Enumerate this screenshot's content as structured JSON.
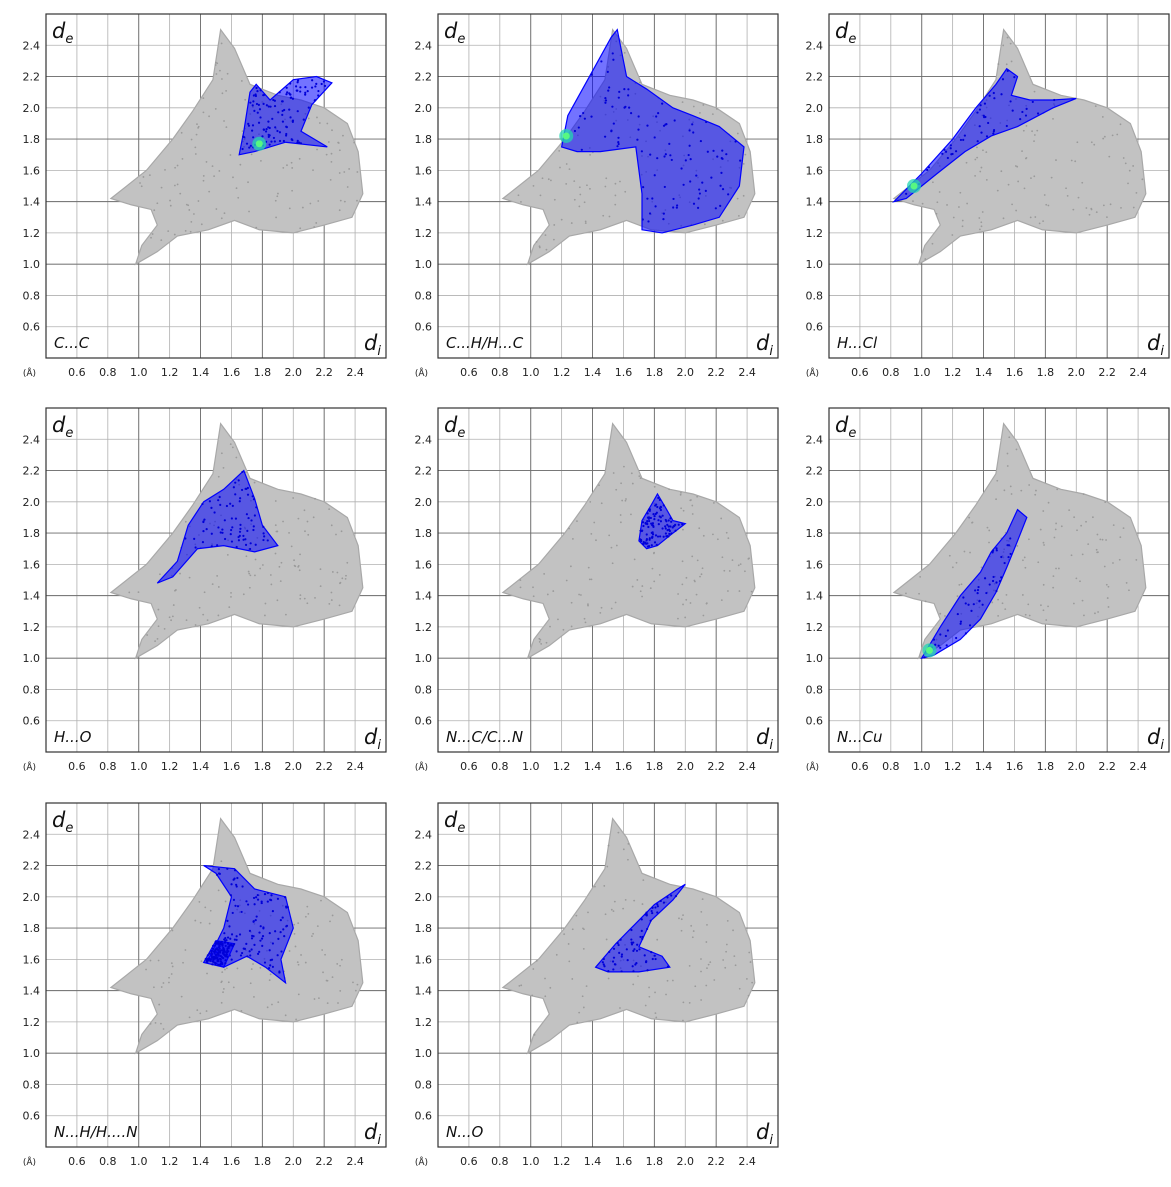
{
  "chart_data": [
    {
      "type": "scatter",
      "title": "",
      "contact_label": "C...C",
      "xlabel": "d",
      "xlabel_sub": "i",
      "ylabel": "d",
      "ylabel_sub": "e",
      "unit": "(Å)",
      "xlim": [
        0.4,
        2.6
      ],
      "ylim": [
        0.4,
        2.6
      ],
      "xticks": [
        "0.6",
        "0.8",
        "1.0",
        "1.2",
        "1.4",
        "1.6",
        "1.8",
        "2.0",
        "2.2",
        "2.4"
      ],
      "yticks": [
        "0.6",
        "0.8",
        "1.0",
        "1.2",
        "1.4",
        "1.6",
        "1.8",
        "2.0",
        "2.2",
        "2.4"
      ],
      "grid": true,
      "series": [
        {
          "color": "#0000ff",
          "polygons": [
            [
              [
                1.65,
                1.7
              ],
              [
                1.68,
                1.85
              ],
              [
                1.72,
                2.1
              ],
              [
                1.76,
                2.15
              ],
              [
                1.85,
                2.05
              ],
              [
                2.0,
                2.18
              ],
              [
                2.15,
                2.2
              ],
              [
                2.25,
                2.16
              ],
              [
                2.12,
                2.02
              ],
              [
                2.05,
                1.85
              ],
              [
                2.22,
                1.75
              ],
              [
                1.95,
                1.78
              ],
              [
                1.75,
                1.72
              ]
            ]
          ],
          "highlight": [
            1.78,
            1.77
          ]
        }
      ]
    },
    {
      "type": "scatter",
      "title": "",
      "contact_label": "C...H/H...C",
      "xlabel": "d",
      "xlabel_sub": "i",
      "ylabel": "d",
      "ylabel_sub": "e",
      "unit": "(Å)",
      "xlim": [
        0.4,
        2.6
      ],
      "ylim": [
        0.4,
        2.6
      ],
      "xticks": [
        "0.6",
        "0.8",
        "1.0",
        "1.2",
        "1.4",
        "1.6",
        "1.8",
        "2.0",
        "2.2",
        "2.4"
      ],
      "yticks": [
        "0.6",
        "0.8",
        "1.0",
        "1.2",
        "1.4",
        "1.6",
        "1.8",
        "2.0",
        "2.2",
        "2.4"
      ],
      "grid": true,
      "series": [
        {
          "color": "#0000ff",
          "polygons": [
            [
              [
                1.2,
                1.75
              ],
              [
                1.24,
                1.95
              ],
              [
                1.38,
                2.2
              ],
              [
                1.52,
                2.45
              ],
              [
                1.56,
                2.5
              ],
              [
                1.62,
                2.2
              ],
              [
                1.75,
                2.12
              ],
              [
                1.92,
                2.0
              ],
              [
                2.05,
                1.95
              ],
              [
                2.22,
                1.88
              ],
              [
                2.38,
                1.75
              ],
              [
                2.35,
                1.5
              ],
              [
                2.22,
                1.3
              ],
              [
                2.05,
                1.25
              ],
              [
                1.85,
                1.2
              ],
              [
                1.72,
                1.22
              ],
              [
                1.72,
                1.45
              ],
              [
                1.68,
                1.75
              ],
              [
                1.45,
                1.72
              ],
              [
                1.3,
                1.72
              ]
            ]
          ],
          "highlight": [
            1.23,
            1.82
          ]
        }
      ]
    },
    {
      "type": "scatter",
      "title": "",
      "contact_label": "H...Cl",
      "xlabel": "d",
      "xlabel_sub": "i",
      "ylabel": "d",
      "ylabel_sub": "e",
      "unit": "(Å)",
      "xlim": [
        0.4,
        2.6
      ],
      "ylim": [
        0.4,
        2.6
      ],
      "xticks": [
        "0.6",
        "0.8",
        "1.0",
        "1.2",
        "1.4",
        "1.6",
        "1.8",
        "2.0",
        "2.2",
        "2.4"
      ],
      "yticks": [
        "0.6",
        "0.8",
        "1.0",
        "1.2",
        "1.4",
        "1.6",
        "1.8",
        "2.0",
        "2.2",
        "2.4"
      ],
      "grid": true,
      "series": [
        {
          "color": "#0000ff",
          "polygons": [
            [
              [
                0.82,
                1.4
              ],
              [
                1.0,
                1.58
              ],
              [
                1.2,
                1.8
              ],
              [
                1.35,
                2.0
              ],
              [
                1.48,
                2.15
              ],
              [
                1.55,
                2.25
              ],
              [
                1.62,
                2.2
              ],
              [
                1.58,
                2.08
              ],
              [
                1.7,
                2.05
              ],
              [
                1.85,
                2.05
              ],
              [
                2.0,
                2.06
              ],
              [
                1.85,
                2.0
              ],
              [
                1.62,
                1.88
              ],
              [
                1.45,
                1.82
              ],
              [
                1.28,
                1.72
              ],
              [
                1.1,
                1.58
              ],
              [
                0.9,
                1.42
              ]
            ]
          ],
          "highlight": [
            0.95,
            1.5
          ]
        }
      ]
    },
    {
      "type": "scatter",
      "title": "",
      "contact_label": "H...O",
      "xlabel": "d",
      "xlabel_sub": "i",
      "ylabel": "d",
      "ylabel_sub": "e",
      "unit": "(Å)",
      "xlim": [
        0.4,
        2.6
      ],
      "ylim": [
        0.4,
        2.6
      ],
      "xticks": [
        "0.6",
        "0.8",
        "1.0",
        "1.2",
        "1.4",
        "1.6",
        "1.8",
        "2.0",
        "2.2",
        "2.4"
      ],
      "yticks": [
        "0.6",
        "0.8",
        "1.0",
        "1.2",
        "1.4",
        "1.6",
        "1.8",
        "2.0",
        "2.2",
        "2.4"
      ],
      "grid": true,
      "series": [
        {
          "color": "#0000ff",
          "polygons": [
            [
              [
                1.12,
                1.48
              ],
              [
                1.25,
                1.62
              ],
              [
                1.32,
                1.85
              ],
              [
                1.42,
                2.0
              ],
              [
                1.55,
                2.08
              ],
              [
                1.68,
                2.2
              ],
              [
                1.75,
                2.02
              ],
              [
                1.8,
                1.85
              ],
              [
                1.9,
                1.72
              ],
              [
                1.75,
                1.68
              ],
              [
                1.55,
                1.72
              ],
              [
                1.38,
                1.7
              ],
              [
                1.22,
                1.52
              ]
            ]
          ]
        }
      ]
    },
    {
      "type": "scatter",
      "title": "",
      "contact_label": "N...C/C...N",
      "xlabel": "d",
      "xlabel_sub": "i",
      "ylabel": "d",
      "ylabel_sub": "e",
      "unit": "(Å)",
      "xlim": [
        0.4,
        2.6
      ],
      "ylim": [
        0.4,
        2.6
      ],
      "xticks": [
        "0.6",
        "0.8",
        "1.0",
        "1.2",
        "1.4",
        "1.6",
        "1.8",
        "2.0",
        "2.2",
        "2.4"
      ],
      "yticks": [
        "0.6",
        "0.8",
        "1.0",
        "1.2",
        "1.4",
        "1.6",
        "1.8",
        "2.0",
        "2.2",
        "2.4"
      ],
      "grid": true,
      "series": [
        {
          "color": "#0000ff",
          "polygons": [
            [
              [
                1.7,
                1.75
              ],
              [
                1.72,
                1.88
              ],
              [
                1.78,
                1.98
              ],
              [
                1.82,
                2.05
              ],
              [
                1.88,
                1.95
              ],
              [
                1.92,
                1.88
              ],
              [
                2.0,
                1.86
              ],
              [
                1.92,
                1.8
              ],
              [
                1.82,
                1.72
              ],
              [
                1.75,
                1.7
              ]
            ]
          ]
        }
      ]
    },
    {
      "type": "scatter",
      "title": "",
      "contact_label": "N...Cu",
      "xlabel": "d",
      "xlabel_sub": "i",
      "ylabel": "d",
      "ylabel_sub": "e",
      "unit": "(Å)",
      "xlim": [
        0.4,
        2.6
      ],
      "ylim": [
        0.4,
        2.6
      ],
      "xticks": [
        "0.6",
        "0.8",
        "1.0",
        "1.2",
        "1.4",
        "1.6",
        "1.8",
        "2.0",
        "2.2",
        "2.4"
      ],
      "yticks": [
        "0.6",
        "0.8",
        "1.0",
        "1.2",
        "1.4",
        "1.6",
        "1.8",
        "2.0",
        "2.2",
        "2.4"
      ],
      "grid": true,
      "series": [
        {
          "color": "#0000ff",
          "polygons": [
            [
              [
                1.0,
                1.0
              ],
              [
                1.12,
                1.2
              ],
              [
                1.25,
                1.4
              ],
              [
                1.38,
                1.55
              ],
              [
                1.45,
                1.68
              ],
              [
                1.55,
                1.8
              ],
              [
                1.62,
                1.95
              ],
              [
                1.68,
                1.9
              ],
              [
                1.62,
                1.75
              ],
              [
                1.55,
                1.58
              ],
              [
                1.48,
                1.42
              ],
              [
                1.38,
                1.25
              ],
              [
                1.25,
                1.12
              ],
              [
                1.08,
                1.02
              ]
            ]
          ],
          "highlight": [
            1.05,
            1.05
          ]
        }
      ]
    },
    {
      "type": "scatter",
      "title": "",
      "contact_label": "N...H/H....N",
      "xlabel": "d",
      "xlabel_sub": "i",
      "ylabel": "d",
      "ylabel_sub": "e",
      "unit": "(Å)",
      "xlim": [
        0.4,
        2.6
      ],
      "ylim": [
        0.4,
        2.6
      ],
      "xticks": [
        "0.6",
        "0.8",
        "1.0",
        "1.2",
        "1.4",
        "1.6",
        "1.8",
        "2.0",
        "2.2",
        "2.4"
      ],
      "yticks": [
        "0.6",
        "0.8",
        "1.0",
        "1.2",
        "1.4",
        "1.6",
        "1.8",
        "2.0",
        "2.2",
        "2.4"
      ],
      "grid": true,
      "series": [
        {
          "color": "#0000ff",
          "polygons": [
            [
              [
                1.42,
                2.2
              ],
              [
                1.62,
                2.18
              ],
              [
                1.75,
                2.05
              ],
              [
                1.95,
                2.0
              ],
              [
                2.0,
                1.8
              ],
              [
                1.92,
                1.6
              ],
              [
                1.95,
                1.45
              ],
              [
                1.82,
                1.55
              ],
              [
                1.7,
                1.62
              ],
              [
                1.55,
                1.55
              ],
              [
                1.45,
                1.6
              ],
              [
                1.55,
                1.8
              ],
              [
                1.6,
                2.0
              ],
              [
                1.5,
                2.15
              ]
            ],
            [
              [
                1.42,
                1.58
              ],
              [
                1.5,
                1.72
              ],
              [
                1.62,
                1.7
              ],
              [
                1.55,
                1.55
              ]
            ]
          ]
        }
      ]
    },
    {
      "type": "scatter",
      "title": "",
      "contact_label": "N...O",
      "xlabel": "d",
      "xlabel_sub": "i",
      "ylabel": "d",
      "ylabel_sub": "e",
      "unit": "(Å)",
      "xlim": [
        0.4,
        2.6
      ],
      "ylim": [
        0.4,
        2.6
      ],
      "xticks": [
        "0.6",
        "0.8",
        "1.0",
        "1.2",
        "1.4",
        "1.6",
        "1.8",
        "2.0",
        "2.2",
        "2.4"
      ],
      "yticks": [
        "0.6",
        "0.8",
        "1.0",
        "1.2",
        "1.4",
        "1.6",
        "1.8",
        "2.0",
        "2.2",
        "2.4"
      ],
      "grid": true,
      "series": [
        {
          "color": "#0000ff",
          "polygons": [
            [
              [
                1.42,
                1.55
              ],
              [
                1.55,
                1.7
              ],
              [
                1.65,
                1.8
              ],
              [
                1.8,
                1.95
              ],
              [
                1.95,
                2.05
              ],
              [
                2.0,
                2.08
              ],
              [
                1.92,
                1.98
              ],
              [
                1.78,
                1.85
              ],
              [
                1.7,
                1.68
              ],
              [
                1.85,
                1.62
              ],
              [
                1.9,
                1.55
              ],
              [
                1.7,
                1.52
              ],
              [
                1.5,
                1.52
              ]
            ]
          ]
        }
      ]
    }
  ]
}
